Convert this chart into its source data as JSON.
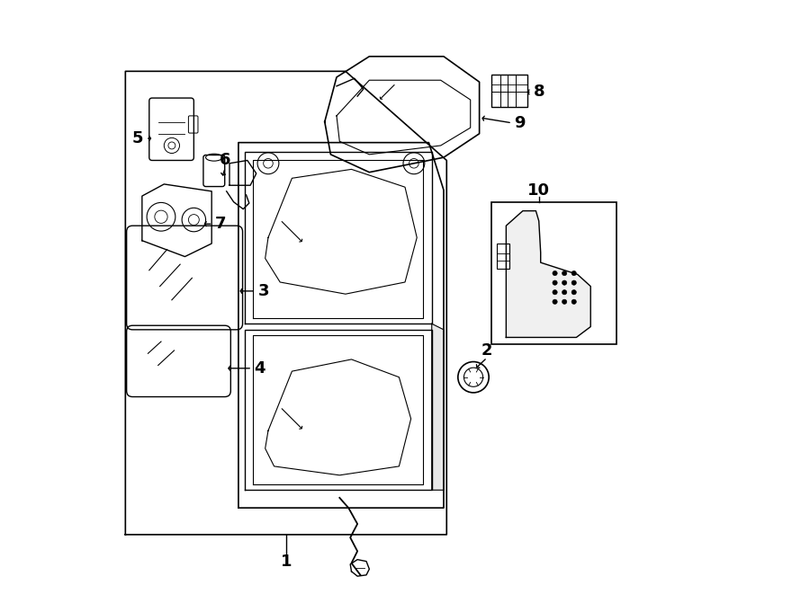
{
  "bg_color": "#ffffff",
  "line_color": "#000000",
  "label_color": "#000000",
  "main_box": {
    "x": [
      0.03,
      0.03,
      0.4,
      0.57,
      0.57,
      0.03
    ],
    "y": [
      0.1,
      0.88,
      0.88,
      0.73,
      0.1,
      0.1
    ]
  },
  "label_fontsize": 13
}
